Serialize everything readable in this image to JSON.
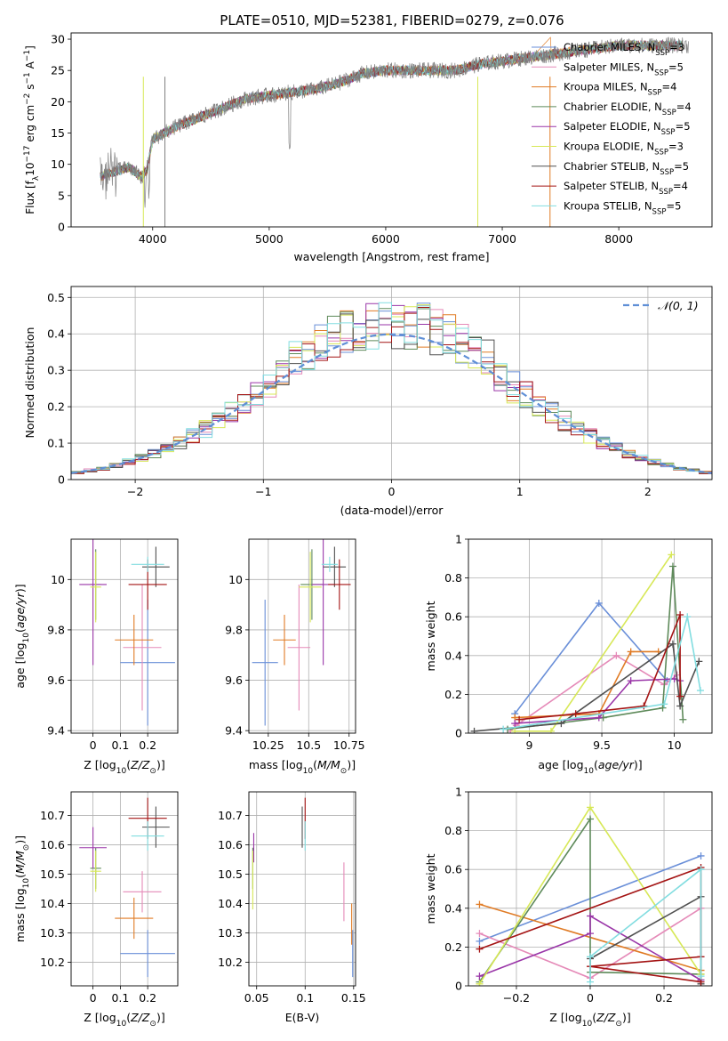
{
  "title": "PLATE=0510, MJD=52381, FIBERID=0279, z=0.076",
  "colors": {
    "Chabrier MILES": "#6a8fd8",
    "Salpeter MILES": "#e58ab8",
    "Kroupa MILES": "#e07b25",
    "Chabrier ELODIE": "#5e8a5a",
    "Salpeter ELODIE": "#9a36a8",
    "Kroupa ELODIE": "#d7e857",
    "Chabrier STELIB": "#505050",
    "Salpeter STELIB": "#a41414",
    "Kroupa STELIB": "#82dde0",
    "data": "#7f7f7f",
    "normal": "#5f8fd6"
  },
  "chart_data": [
    {
      "id": "spectrum",
      "type": "line",
      "xlabel": "wavelength [Angstrom, rest frame]",
      "ylabel_parts": [
        "Flux [f",
        "λ",
        "10",
        "−17",
        " erg cm",
        "−2",
        " s",
        "−1",
        " A",
        "−1",
        "]"
      ],
      "xlim": [
        3300,
        8800
      ],
      "ylim": [
        0,
        31
      ],
      "xticks": [
        4000,
        5000,
        6000,
        7000,
        8000
      ],
      "yticks": [
        0,
        5,
        10,
        15,
        20,
        25,
        30
      ],
      "grid": false,
      "legend_position": "top-right",
      "legend": [
        {
          "model": "Chabrier MILES",
          "label": "Chabrier MILES, N",
          "sub": "SSP",
          "n": "=3"
        },
        {
          "model": "Salpeter MILES",
          "label": "Salpeter MILES, N",
          "sub": "SSP",
          "n": "=5"
        },
        {
          "model": "Kroupa MILES",
          "label": "Kroupa MILES, N",
          "sub": "SSP",
          "n": "=4"
        },
        {
          "model": "Chabrier ELODIE",
          "label": "Chabrier ELODIE, N",
          "sub": "SSP",
          "n": "=4"
        },
        {
          "model": "Salpeter ELODIE",
          "label": "Salpeter ELODIE, N",
          "sub": "SSP",
          "n": "=5"
        },
        {
          "model": "Kroupa ELODIE",
          "label": "Kroupa ELODIE, N",
          "sub": "SSP",
          "n": "=3"
        },
        {
          "model": "Chabrier STELIB",
          "label": "Chabrier STELIB, N",
          "sub": "SSP",
          "n": "=5"
        },
        {
          "model": "Salpeter STELIB",
          "label": "Salpeter STELIB, N",
          "sub": "SSP",
          "n": "=4"
        },
        {
          "model": "Kroupa STELIB",
          "label": "Kroupa STELIB, N",
          "sub": "SSP",
          "n": "=5"
        }
      ],
      "data_spectrum": {
        "x_range": [
          3550,
          8600
        ],
        "continuum_x": [
          3550,
          3700,
          3800,
          3900,
          3950,
          4000,
          4100,
          4200,
          4400,
          4600,
          4800,
          5000,
          5200,
          5400,
          5600,
          5800,
          6000,
          6200,
          6400,
          6600,
          6800,
          7000,
          7200,
          7400,
          7600,
          7800,
          8000,
          8200,
          8400,
          8600
        ],
        "continuum_y": [
          8,
          9,
          9.5,
          8,
          9,
          14,
          15,
          16,
          17.5,
          19,
          20.5,
          21,
          21.5,
          22,
          23,
          24.5,
          25,
          25,
          25,
          25,
          26,
          26.5,
          27,
          27.5,
          28,
          28.5,
          29,
          29,
          29,
          29
        ]
      }
    },
    {
      "id": "residuals",
      "type": "histogram",
      "xlabel": "(data-model)/error",
      "ylabel": "Normed distribution",
      "xlim": [
        -2.5,
        2.5
      ],
      "ylim": [
        0,
        0.53
      ],
      "xticks": [
        -2,
        -1,
        0,
        1,
        2
      ],
      "yticks": [
        0.0,
        0.1,
        0.2,
        0.3,
        0.4,
        0.5
      ],
      "grid": true,
      "bin_width": 0.1,
      "legend_position": "top-right",
      "legend_label": "𝒩(0, 1)",
      "normal_curve": {
        "mean": 0,
        "sigma": 1
      }
    },
    {
      "id": "age-vs-z",
      "type": "scatter",
      "xlabel": "Z [log10(Z/Z⊙)]",
      "ylabel": "age  [log10(age/yr)]",
      "xlim": [
        -0.08,
        0.31
      ],
      "ylim": [
        9.39,
        10.16
      ],
      "xticks": [
        0.0,
        0.1,
        0.2
      ],
      "yticks": [
        9.4,
        9.6,
        9.8,
        10.0
      ],
      "grid": true,
      "points": [
        {
          "model": "Chabrier MILES",
          "x": 0.2,
          "xerr": 0.1,
          "y": 9.67,
          "yerr": 0.25
        },
        {
          "model": "Salpeter MILES",
          "x": 0.18,
          "xerr": 0.07,
          "y": 9.73,
          "yerr": 0.25
        },
        {
          "model": "Kroupa MILES",
          "x": 0.15,
          "xerr": 0.07,
          "y": 9.76,
          "yerr": 0.1
        },
        {
          "model": "Chabrier ELODIE",
          "x": 0.01,
          "xerr": 0.02,
          "y": 9.98,
          "yerr": 0.14
        },
        {
          "model": "Salpeter ELODIE",
          "x": 0.0,
          "xerr": 0.05,
          "y": 9.98,
          "yerr": 0.32
        },
        {
          "model": "Kroupa ELODIE",
          "x": 0.01,
          "xerr": 0.02,
          "y": 9.97,
          "yerr": 0.14
        },
        {
          "model": "Chabrier STELIB",
          "x": 0.23,
          "xerr": 0.05,
          "y": 10.05,
          "yerr": 0.08
        },
        {
          "model": "Salpeter STELIB",
          "x": 0.2,
          "xerr": 0.07,
          "y": 9.98,
          "yerr": 0.1
        },
        {
          "model": "Kroupa STELIB",
          "x": 0.2,
          "xerr": 0.06,
          "y": 10.06,
          "yerr": 0.03
        }
      ]
    },
    {
      "id": "age-vs-mass",
      "type": "scatter",
      "xlabel": "mass [log10(M/M⊙)]",
      "ylabel": "",
      "xlim": [
        10.13,
        10.79
      ],
      "ylim": [
        9.39,
        10.16
      ],
      "xticks": [
        10.25,
        10.5,
        10.75
      ],
      "yticks": [
        9.4,
        9.6,
        9.8,
        10.0
      ],
      "grid": true,
      "points": [
        {
          "model": "Chabrier MILES",
          "x": 10.23,
          "xerr": 0.08,
          "y": 9.67,
          "yerr": 0.25
        },
        {
          "model": "Salpeter MILES",
          "x": 10.44,
          "xerr": 0.07,
          "y": 9.73,
          "yerr": 0.25
        },
        {
          "model": "Kroupa MILES",
          "x": 10.35,
          "xerr": 0.07,
          "y": 9.76,
          "yerr": 0.1
        },
        {
          "model": "Chabrier ELODIE",
          "x": 10.52,
          "xerr": 0.07,
          "y": 9.98,
          "yerr": 0.14
        },
        {
          "model": "Salpeter ELODIE",
          "x": 10.59,
          "xerr": 0.07,
          "y": 9.98,
          "yerr": 0.32
        },
        {
          "model": "Kroupa ELODIE",
          "x": 10.51,
          "xerr": 0.07,
          "y": 9.97,
          "yerr": 0.14
        },
        {
          "model": "Chabrier STELIB",
          "x": 10.66,
          "xerr": 0.07,
          "y": 10.05,
          "yerr": 0.08
        },
        {
          "model": "Salpeter STELIB",
          "x": 10.69,
          "xerr": 0.07,
          "y": 9.98,
          "yerr": 0.1
        },
        {
          "model": "Kroupa STELIB",
          "x": 10.63,
          "xerr": 0.05,
          "y": 10.06,
          "yerr": 0.03
        }
      ]
    },
    {
      "id": "weight-vs-age",
      "type": "line",
      "xlabel": "age  [log10(age/yr)]",
      "ylabel": "mass weight",
      "xlim": [
        8.58,
        10.26
      ],
      "ylim": [
        0,
        1
      ],
      "xticks": [
        9.0,
        9.5,
        10.0
      ],
      "yticks": [
        0.0,
        0.2,
        0.4,
        0.6,
        0.8,
        1.0
      ],
      "grid": true,
      "series": [
        {
          "model": "Chabrier MILES",
          "x": [
            8.9,
            9.48,
            9.95
          ],
          "y": [
            0.1,
            0.67,
            0.27
          ]
        },
        {
          "model": "Salpeter MILES",
          "x": [
            8.87,
            8.91,
            9.6,
            9.93,
            10.02
          ],
          "y": [
            0.01,
            0.04,
            0.4,
            0.25,
            0.3
          ]
        },
        {
          "model": "Kroupa MILES",
          "x": [
            8.9,
            9.48,
            9.7,
            9.89
          ],
          "y": [
            0.08,
            0.1,
            0.42,
            0.42
          ]
        },
        {
          "model": "Chabrier ELODIE",
          "x": [
            8.85,
            9.51,
            9.92,
            9.99,
            10.06
          ],
          "y": [
            0.02,
            0.08,
            0.13,
            0.86,
            0.07
          ]
        },
        {
          "model": "Salpeter ELODIE",
          "x": [
            8.9,
            9.48,
            9.7,
            10.0,
            10.04
          ],
          "y": [
            0.05,
            0.08,
            0.27,
            0.28,
            0.27
          ]
        },
        {
          "model": "Kroupa ELODIE",
          "x": [
            8.9,
            9.15,
            9.98
          ],
          "y": [
            0.01,
            0.01,
            0.92
          ]
        },
        {
          "model": "Chabrier STELIB",
          "x": [
            8.62,
            9.22,
            9.99,
            10.04,
            10.17
          ],
          "y": [
            0.01,
            0.05,
            0.46,
            0.14,
            0.37
          ]
        },
        {
          "model": "Salpeter STELIB",
          "x": [
            8.93,
            9.32,
            9.79,
            10.04,
            10.04
          ],
          "y": [
            0.07,
            0.1,
            0.14,
            0.61,
            0.19
          ]
        },
        {
          "model": "Kroupa STELIB",
          "x": [
            8.82,
            9.93,
            10.09,
            10.18
          ],
          "y": [
            0.02,
            0.15,
            0.6,
            0.22
          ]
        }
      ]
    },
    {
      "id": "mass-vs-z",
      "type": "scatter",
      "xlabel": "Z [log10(Z/Z⊙)]",
      "ylabel": "mass [log10(M/M⊙)]",
      "xlim": [
        -0.08,
        0.31
      ],
      "ylim": [
        10.12,
        10.78
      ],
      "xticks": [
        0.0,
        0.1,
        0.2
      ],
      "yticks": [
        10.2,
        10.3,
        10.4,
        10.5,
        10.6,
        10.7
      ],
      "grid": true,
      "points": [
        {
          "model": "Chabrier MILES",
          "x": 0.2,
          "xerr": 0.1,
          "y": 10.23,
          "yerr": 0.08
        },
        {
          "model": "Salpeter MILES",
          "x": 0.18,
          "xerr": 0.07,
          "y": 10.44,
          "yerr": 0.07
        },
        {
          "model": "Kroupa MILES",
          "x": 0.15,
          "xerr": 0.07,
          "y": 10.35,
          "yerr": 0.07
        },
        {
          "model": "Chabrier ELODIE",
          "x": 0.01,
          "xerr": 0.02,
          "y": 10.52,
          "yerr": 0.07
        },
        {
          "model": "Salpeter ELODIE",
          "x": 0.0,
          "xerr": 0.05,
          "y": 10.59,
          "yerr": 0.07
        },
        {
          "model": "Kroupa ELODIE",
          "x": 0.01,
          "xerr": 0.02,
          "y": 10.51,
          "yerr": 0.07
        },
        {
          "model": "Chabrier STELIB",
          "x": 0.23,
          "xerr": 0.05,
          "y": 10.66,
          "yerr": 0.07
        },
        {
          "model": "Salpeter STELIB",
          "x": 0.2,
          "xerr": 0.07,
          "y": 10.69,
          "yerr": 0.07
        },
        {
          "model": "Kroupa STELIB",
          "x": 0.2,
          "xerr": 0.06,
          "y": 10.63,
          "yerr": 0.05
        }
      ]
    },
    {
      "id": "mass-vs-ebv",
      "type": "scatter",
      "xlabel": "E(B-V)",
      "ylabel": "",
      "xlim": [
        0.042,
        0.152
      ],
      "ylim": [
        10.12,
        10.78
      ],
      "xticks": [
        0.05,
        0.1,
        0.15
      ],
      "yticks": [
        10.2,
        10.3,
        10.4,
        10.5,
        10.6,
        10.7
      ],
      "grid": true,
      "points": [
        {
          "model": "Chabrier MILES",
          "x": 0.149,
          "xerr": 0.0,
          "y": 10.23,
          "yerr": 0.08
        },
        {
          "model": "Salpeter MILES",
          "x": 0.14,
          "xerr": 0.0,
          "y": 10.44,
          "yerr": 0.1
        },
        {
          "model": "Kroupa MILES",
          "x": 0.148,
          "xerr": 0.0,
          "y": 10.33,
          "yerr": 0.07
        },
        {
          "model": "Chabrier ELODIE",
          "x": 0.046,
          "xerr": 0.0,
          "y": 10.52,
          "yerr": 0.07
        },
        {
          "model": "Salpeter ELODIE",
          "x": 0.047,
          "xerr": 0.0,
          "y": 10.59,
          "yerr": 0.05
        },
        {
          "model": "Kroupa ELODIE",
          "x": 0.046,
          "xerr": 0.0,
          "y": 10.48,
          "yerr": 0.1
        },
        {
          "model": "Chabrier STELIB",
          "x": 0.097,
          "xerr": 0.0,
          "y": 10.66,
          "yerr": 0.07
        },
        {
          "model": "Salpeter STELIB",
          "x": 0.1,
          "xerr": 0.0,
          "y": 10.69,
          "yerr": 0.07
        },
        {
          "model": "Kroupa STELIB",
          "x": 0.1,
          "xerr": 0.0,
          "y": 10.63,
          "yerr": 0.05
        }
      ]
    },
    {
      "id": "weight-vs-z",
      "type": "line",
      "xlabel": "Z [log10(Z/Z⊙)]",
      "ylabel": "mass weight",
      "xlim": [
        -0.33,
        0.33
      ],
      "ylim": [
        0,
        1
      ],
      "xticks": [
        -0.2,
        0.0,
        0.2
      ],
      "yticks": [
        0.0,
        0.2,
        0.4,
        0.6,
        0.8,
        1.0
      ],
      "grid": true,
      "series": [
        {
          "model": "Chabrier MILES",
          "x": [
            -0.3,
            0.3
          ],
          "y": [
            0.23,
            0.67
          ]
        },
        {
          "model": "Salpeter MILES",
          "x": [
            -0.3,
            0.0,
            0.3
          ],
          "y": [
            0.27,
            0.04,
            0.4
          ]
        },
        {
          "model": "Kroupa MILES",
          "x": [
            -0.3,
            0.3
          ],
          "y": [
            0.42,
            0.08
          ]
        },
        {
          "model": "Chabrier ELODIE",
          "x": [
            -0.3,
            0.0,
            0.0,
            0.3
          ],
          "y": [
            0.02,
            0.86,
            0.07,
            0.06
          ]
        },
        {
          "model": "Salpeter ELODIE",
          "x": [
            -0.3,
            0.0,
            0.0,
            0.3
          ],
          "y": [
            0.05,
            0.27,
            0.36,
            0.03
          ]
        },
        {
          "model": "Kroupa ELODIE",
          "x": [
            -0.3,
            0.0,
            0.3
          ],
          "y": [
            0.01,
            0.92,
            0.06
          ]
        },
        {
          "model": "Chabrier STELIB",
          "x": [
            0.0,
            0.3,
            0.3
          ],
          "y": [
            0.14,
            0.46,
            0.01
          ]
        },
        {
          "model": "Salpeter STELIB",
          "x": [
            -0.3,
            0.3,
            0.3,
            0.0,
            0.3
          ],
          "y": [
            0.19,
            0.61,
            0.15,
            0.1,
            0.02
          ]
        },
        {
          "model": "Kroupa STELIB",
          "x": [
            0.0,
            0.0,
            0.3,
            0.3
          ],
          "y": [
            0.02,
            0.15,
            0.6,
            0.05
          ]
        }
      ]
    }
  ]
}
